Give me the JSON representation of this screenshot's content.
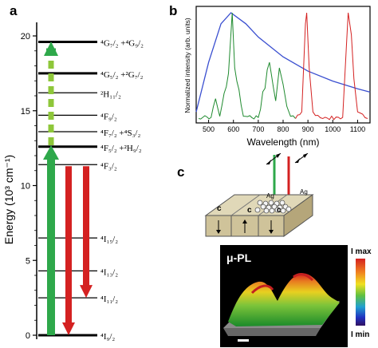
{
  "panel_a": {
    "letter": "a",
    "ylabel": "Energy (10³ cm⁻¹)",
    "ticks": [
      "0",
      "5",
      "10",
      "15",
      "20"
    ],
    "levels": [
      {
        "label": "⁴I₉/₂",
        "energy": 0
      },
      {
        "label": "⁴I₁₁/₂",
        "energy": 2.5
      },
      {
        "label": "⁴I₁₃/₂",
        "energy": 4.3
      },
      {
        "label": "⁴I₁₅/₂",
        "energy": 6.5
      },
      {
        "label": "⁴F₃/₂",
        "energy": 11.4
      },
      {
        "label": "⁴F₅/₂ +²H₉/₂",
        "energy": 12.6
      },
      {
        "label": "⁴F₇/₂ +⁴S₃/₂",
        "energy": 13.6
      },
      {
        "label": "⁴F₉/₂",
        "energy": 14.7
      },
      {
        "label": "²H₁₁/₂",
        "energy": 16.2
      },
      {
        "label": "⁴G₅/₂ +²G₇/₂",
        "energy": 17.5
      },
      {
        "label": "⁴G₇/₂ +⁴G₉/₂",
        "energy": 19.6
      }
    ],
    "colors": {
      "green": "#2ea84a",
      "red": "#d42121"
    }
  },
  "panel_b": {
    "letter": "b",
    "xlabel": "Wavelength (nm)",
    "ylabel": "Normalized intensity (arb. units)",
    "xticks": [
      "500",
      "600",
      "700",
      "800",
      "900",
      "1000",
      "1100"
    ],
    "colors": {
      "blue": "#3a4fd0",
      "green": "#1e8a2e",
      "red": "#d42121"
    }
  },
  "panel_c": {
    "letter": "c",
    "ag_left": "Ag",
    "ag_right": "Ag",
    "c_labels": [
      "c",
      "c",
      "c"
    ],
    "map_title": "μ-PL",
    "colorbar_max": "I max",
    "colorbar_min": "I min"
  },
  "chart_data": {
    "type": "line",
    "xlabel": "Wavelength (nm)",
    "ylabel": "Normalized intensity (arb. units)",
    "xlim": [
      450,
      1150
    ],
    "series": [
      {
        "x": [
          450,
          500,
          550,
          590,
          650,
          700,
          800,
          900,
          1000,
          1100,
          1150
        ],
        "values": [
          0.1,
          0.55,
          0.9,
          1.0,
          0.9,
          0.78,
          0.6,
          0.47,
          0.38,
          0.31,
          0.28
        ]
      },
      {
        "x": [
          460,
          510,
          528,
          545,
          580,
          595,
          605,
          640,
          700,
          745,
          752,
          770,
          785,
          800,
          815,
          830,
          850
        ],
        "values": [
          0.04,
          0.05,
          0.22,
          0.06,
          0.45,
          1.0,
          0.5,
          0.06,
          0.05,
          0.55,
          0.45,
          0.2,
          0.5,
          0.35,
          0.15,
          0.06,
          0.04
        ]
      },
      {
        "x": [
          850,
          875,
          890,
          895,
          905,
          920,
          960,
          1040,
          1055,
          1062,
          1075,
          1085,
          1100,
          1120,
          1140
        ],
        "values": [
          0.04,
          0.1,
          0.9,
          1.0,
          0.5,
          0.1,
          0.04,
          0.05,
          0.7,
          1.0,
          0.8,
          0.4,
          0.1,
          0.08,
          0.04
        ]
      }
    ]
  }
}
